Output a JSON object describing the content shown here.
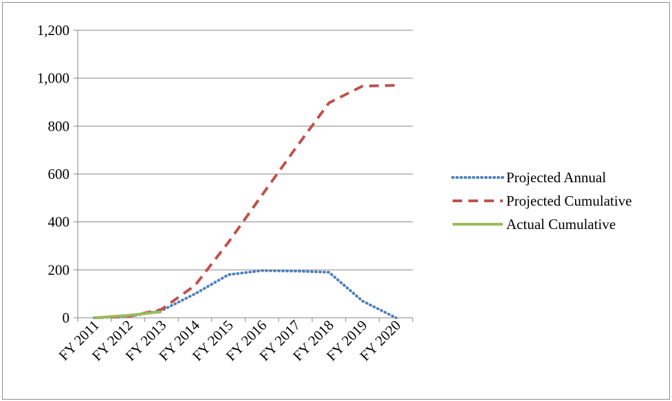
{
  "chart_data": {
    "type": "line",
    "categories": [
      "FY 2011",
      "FY 2012",
      "FY 2013",
      "FY 2014",
      "FY 2015",
      "FY 2016",
      "FY 2017",
      "FY 2018",
      "FY 2019",
      "FY 2020"
    ],
    "ylim": [
      0,
      1200
    ],
    "yticks": [
      0,
      200,
      400,
      600,
      800,
      1000,
      1200
    ],
    "ytick_labels": [
      "0",
      "200",
      "400",
      "600",
      "800",
      "1,000",
      "1,200"
    ],
    "grid": true,
    "legend_position": "right",
    "series": [
      {
        "name": "Projected Annual",
        "values": [
          0,
          5,
          30,
          100,
          180,
          197,
          195,
          190,
          70,
          0
        ],
        "color": "#4f81bd",
        "style": "dotted"
      },
      {
        "name": "Projected Cumulative",
        "values": [
          0,
          5,
          35,
          135,
          315,
          512,
          707,
          897,
          967,
          970
        ],
        "color": "#c0504d",
        "style": "dashed"
      },
      {
        "name": "Actual Cumulative",
        "values": [
          0,
          10,
          25,
          null,
          null,
          null,
          null,
          null,
          null,
          null
        ],
        "color": "#9bbb59",
        "style": "solid"
      }
    ]
  }
}
